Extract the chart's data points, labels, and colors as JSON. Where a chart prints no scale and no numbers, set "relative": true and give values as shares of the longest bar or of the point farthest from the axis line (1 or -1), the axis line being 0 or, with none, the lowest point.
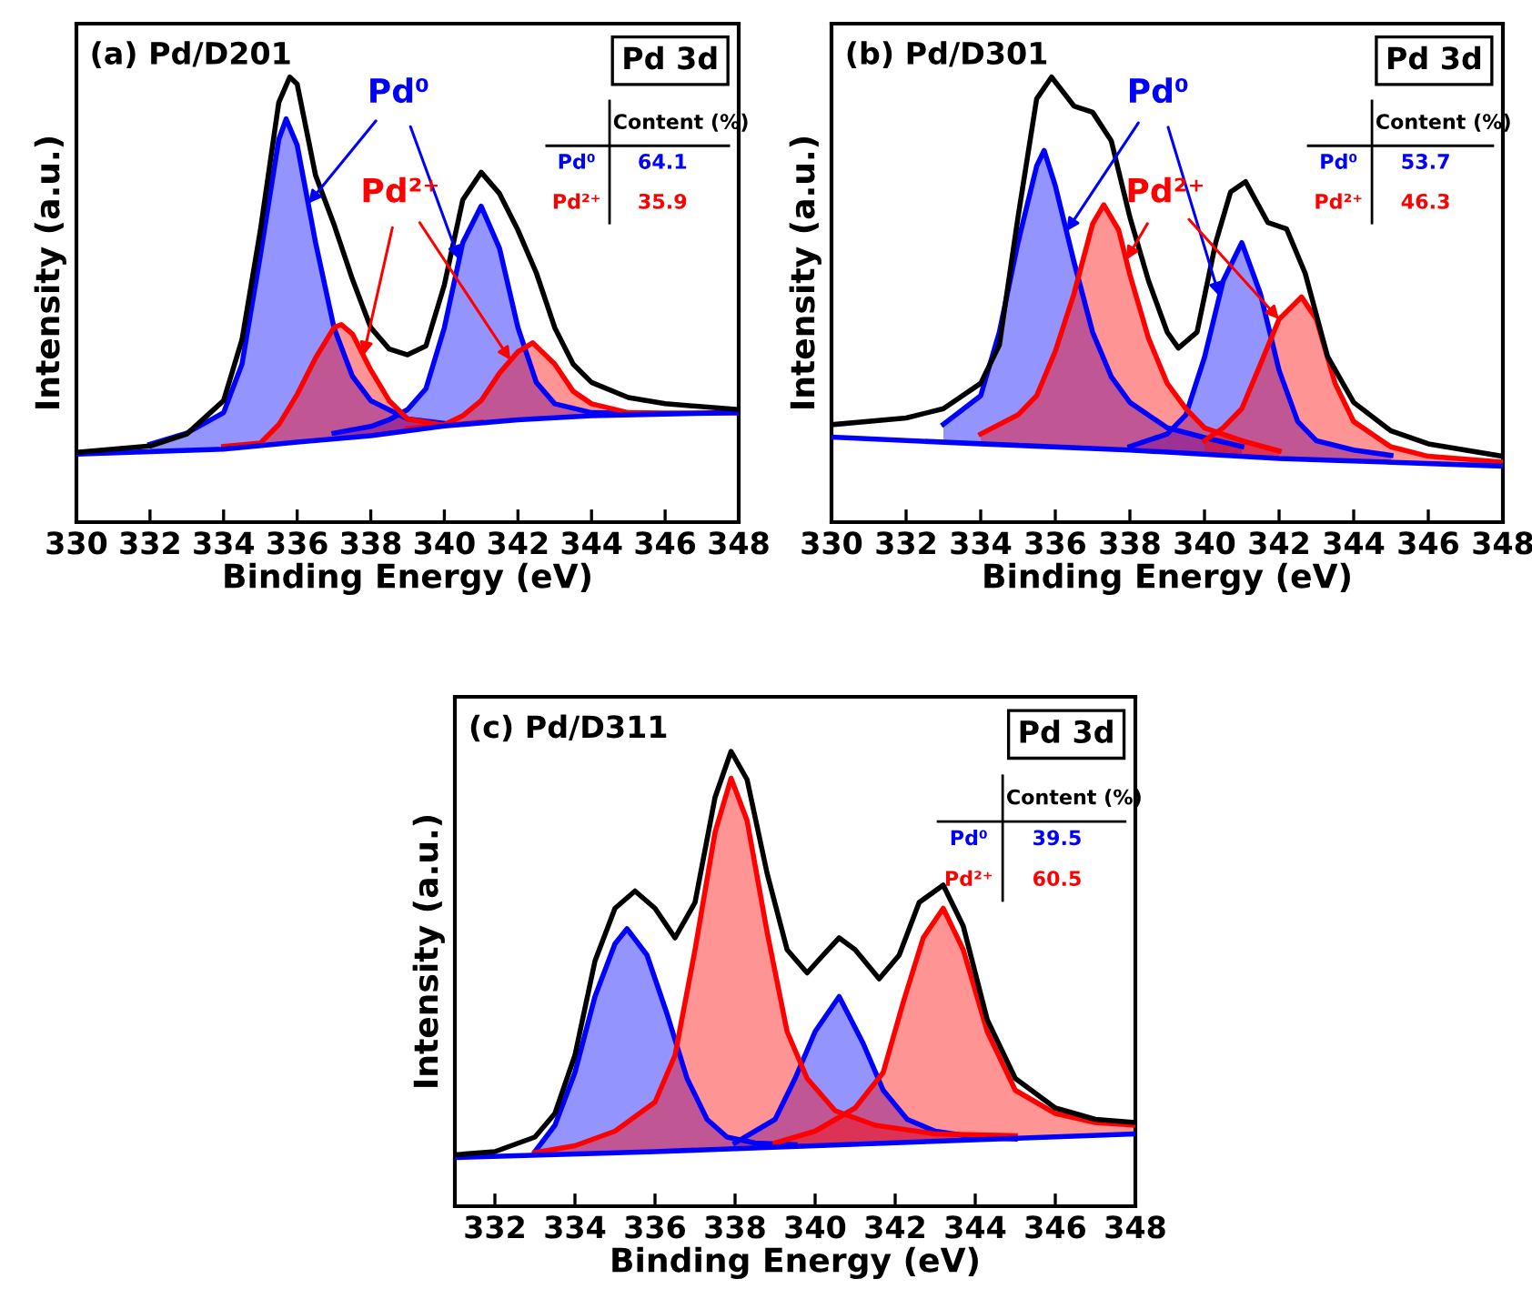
{
  "chart_data": [
    {
      "type": "line",
      "title": "(a) Pd/D201",
      "xlabel": "Binding Energy (eV)",
      "ylabel": "Intensity (a.u.)",
      "relative": true,
      "xlim": [
        330,
        348
      ],
      "xticks": [
        330,
        332,
        334,
        336,
        338,
        340,
        342,
        344,
        346,
        348
      ],
      "series": [
        {
          "type": "area",
          "color": "#0000ff",
          "x": [
            332,
            333,
            334,
            334.5,
            335,
            335.5,
            335.7,
            336,
            336.5,
            337,
            337.5,
            338,
            339,
            340
          ],
          "values": [
            0.175,
            0.2,
            0.246,
            0.355,
            0.6,
            0.86,
            0.906,
            0.847,
            0.628,
            0.437,
            0.328,
            0.273,
            0.232,
            0.222
          ]
        },
        {
          "type": "area",
          "color": "#0000ff",
          "x": [
            337,
            338,
            338.5,
            339,
            339.5,
            340,
            340.5,
            341,
            341.5,
            342,
            342.5,
            343,
            344,
            345
          ],
          "values": [
            0.2,
            0.215,
            0.23,
            0.253,
            0.3,
            0.437,
            0.628,
            0.71,
            0.615,
            0.437,
            0.314,
            0.266,
            0.246,
            0.245
          ]
        },
        {
          "type": "area",
          "color": "#ff0000",
          "x": [
            334,
            335,
            335.5,
            336,
            336.5,
            337,
            337.2,
            337.5,
            338,
            338.5,
            339,
            340,
            341
          ],
          "values": [
            0.17,
            0.178,
            0.219,
            0.287,
            0.369,
            0.437,
            0.444,
            0.423,
            0.342,
            0.273,
            0.232,
            0.217,
            0.225
          ]
        },
        {
          "type": "area",
          "color": "#ff0000",
          "x": [
            339,
            340,
            340.5,
            341,
            341.5,
            342,
            342.4,
            343,
            343.5,
            344,
            345,
            346,
            348
          ],
          "values": [
            0.21,
            0.219,
            0.239,
            0.273,
            0.335,
            0.383,
            0.403,
            0.355,
            0.294,
            0.266,
            0.246,
            0.245,
            0.246
          ]
        },
        {
          "type": "line",
          "color": "#0000ff",
          "x": [
            330,
            334,
            336,
            338,
            340,
            342,
            344,
            346,
            348
          ],
          "values": [
            0.153,
            0.164,
            0.18,
            0.194,
            0.216,
            0.23,
            0.239,
            0.243,
            0.246
          ]
        },
        {
          "type": "line",
          "color": "#000000",
          "x": [
            330,
            332,
            333,
            334,
            334.5,
            335,
            335.5,
            335.8,
            336,
            336.5,
            337,
            337.5,
            338,
            338.5,
            339,
            339.5,
            340,
            340.5,
            341,
            341.5,
            342,
            342.5,
            343,
            343.5,
            344,
            345,
            346,
            348
          ],
          "values": [
            0.157,
            0.171,
            0.198,
            0.273,
            0.41,
            0.656,
            0.943,
            1,
            0.984,
            0.779,
            0.669,
            0.546,
            0.437,
            0.389,
            0.376,
            0.396,
            0.533,
            0.724,
            0.786,
            0.738,
            0.656,
            0.56,
            0.437,
            0.355,
            0.314,
            0.28,
            0.266,
            0.253
          ]
        }
      ],
      "annotations": [
        "Pd 3d",
        "Content (%)",
        "Pd⁰",
        "64.1",
        "Pd²⁺",
        "35.9",
        "Pd⁰",
        "Pd²⁺"
      ]
    },
    {
      "type": "line",
      "title": "(b) Pd/D301",
      "xlabel": "Binding Energy (eV)",
      "ylabel": "Intensity (a.u.)",
      "relative": true,
      "xlim": [
        330,
        348
      ],
      "xticks": [
        330,
        332,
        334,
        336,
        338,
        340,
        342,
        344,
        346,
        348
      ],
      "series": [
        {
          "type": "area",
          "color": "#0000ff",
          "x": [
            333,
            334,
            334.5,
            335,
            335.5,
            335.7,
            336,
            336.5,
            337,
            337.5,
            338,
            339,
            340,
            341
          ],
          "values": [
            0.22,
            0.284,
            0.427,
            0.628,
            0.8,
            0.835,
            0.756,
            0.585,
            0.427,
            0.327,
            0.269,
            0.212,
            0.19,
            0.17
          ]
        },
        {
          "type": "area",
          "color": "#0000ff",
          "x": [
            338,
            339,
            339.5,
            340,
            340.5,
            341,
            341.5,
            342,
            342.5,
            343,
            344,
            345
          ],
          "values": [
            0.17,
            0.198,
            0.241,
            0.37,
            0.542,
            0.628,
            0.513,
            0.341,
            0.226,
            0.183,
            0.162,
            0.15
          ]
        },
        {
          "type": "area",
          "color": "#ff0000",
          "x": [
            334,
            335,
            335.5,
            336,
            336.5,
            337,
            337.3,
            337.7,
            338,
            338.5,
            339,
            339.5,
            340,
            341,
            342
          ],
          "values": [
            0.198,
            0.241,
            0.284,
            0.384,
            0.513,
            0.67,
            0.713,
            0.656,
            0.556,
            0.413,
            0.312,
            0.255,
            0.212,
            0.183,
            0.16
          ]
        },
        {
          "type": "area",
          "color": "#ff0000",
          "x": [
            340,
            340.5,
            341,
            341.5,
            342,
            342.6,
            343,
            343.5,
            344,
            345,
            346,
            348
          ],
          "values": [
            0.183,
            0.212,
            0.255,
            0.355,
            0.456,
            0.506,
            0.456,
            0.312,
            0.226,
            0.169,
            0.148,
            0.135
          ]
        },
        {
          "type": "line",
          "color": "#0000ff",
          "x": [
            330,
            334,
            338,
            342,
            348
          ],
          "values": [
            0.191,
            0.176,
            0.162,
            0.143,
            0.126
          ]
        },
        {
          "type": "line",
          "color": "#000000",
          "x": [
            330,
            332,
            333,
            334,
            334.5,
            335,
            335.5,
            335.9,
            336.5,
            337,
            337.5,
            338,
            338.5,
            339,
            339.3,
            339.8,
            340.3,
            340.7,
            341.1,
            341.7,
            342.2,
            342.7,
            343.3,
            344,
            345,
            346,
            348
          ],
          "values": [
            0.219,
            0.234,
            0.255,
            0.312,
            0.398,
            0.685,
            0.951,
            1,
            0.935,
            0.921,
            0.857,
            0.685,
            0.542,
            0.427,
            0.391,
            0.427,
            0.628,
            0.742,
            0.765,
            0.673,
            0.659,
            0.559,
            0.372,
            0.269,
            0.205,
            0.176,
            0.148
          ]
        }
      ],
      "annotations": [
        "Pd 3d",
        "Content (%)",
        "Pd⁰",
        "53.7",
        "Pd²⁺",
        "46.3",
        "Pd⁰",
        "Pd²⁺"
      ]
    },
    {
      "type": "line",
      "title": "(c) Pd/D311",
      "xlabel": "Binding Energy (eV)",
      "ylabel": "Intensity (a.u.)",
      "relative": true,
      "xlim": [
        331,
        348
      ],
      "xticks": [
        332,
        334,
        336,
        338,
        340,
        342,
        344,
        346,
        348
      ],
      "series": [
        {
          "type": "area",
          "color": "#0000ff",
          "x": [
            333,
            333.5,
            334,
            334.5,
            335,
            335.3,
            335.8,
            336.3,
            336.8,
            337.3,
            337.8,
            338.5,
            339.5
          ],
          "values": [
            0.12,
            0.178,
            0.294,
            0.461,
            0.577,
            0.61,
            0.552,
            0.423,
            0.281,
            0.191,
            0.152,
            0.139,
            0.135
          ]
        },
        {
          "type": "area",
          "color": "#0000ff",
          "x": [
            338,
            339,
            339.5,
            340,
            340.6,
            341.2,
            341.7,
            342.3,
            343,
            344,
            345
          ],
          "values": [
            0.139,
            0.191,
            0.281,
            0.384,
            0.461,
            0.358,
            0.255,
            0.191,
            0.165,
            0.152,
            0.148
          ]
        },
        {
          "type": "area",
          "color": "#ff0000",
          "x": [
            333,
            334,
            335,
            336,
            336.5,
            337,
            337.5,
            337.9,
            338.3,
            338.8,
            339.3,
            339.8,
            340.5,
            341.5,
            343,
            345
          ],
          "values": [
            0.118,
            0.133,
            0.165,
            0.229,
            0.332,
            0.564,
            0.822,
            0.941,
            0.848,
            0.603,
            0.384,
            0.281,
            0.21,
            0.178,
            0.159,
            0.155
          ]
        },
        {
          "type": "area",
          "color": "#ff0000",
          "x": [
            339,
            340,
            341,
            341.7,
            342.2,
            342.7,
            343.2,
            343.7,
            344.3,
            345,
            346,
            347,
            348
          ],
          "values": [
            0.139,
            0.165,
            0.216,
            0.294,
            0.448,
            0.59,
            0.655,
            0.564,
            0.384,
            0.255,
            0.204,
            0.184,
            0.178
          ]
        },
        {
          "type": "line",
          "color": "#0000ff",
          "x": [
            331,
            336,
            340,
            344,
            348
          ],
          "values": [
            0.107,
            0.12,
            0.133,
            0.146,
            0.159
          ]
        },
        {
          "type": "line",
          "color": "#000000",
          "x": [
            331,
            332,
            333,
            333.5,
            334,
            334.5,
            335,
            335.5,
            336,
            336.5,
            337,
            337.5,
            337.9,
            338.3,
            338.8,
            339.3,
            339.8,
            340.2,
            340.6,
            341,
            341.6,
            342.1,
            342.6,
            343.2,
            343.7,
            344.3,
            345,
            346,
            347,
            348
          ],
          "values": [
            0.113,
            0.12,
            0.152,
            0.204,
            0.332,
            0.539,
            0.655,
            0.693,
            0.655,
            0.59,
            0.668,
            0.899,
            1,
            0.938,
            0.732,
            0.564,
            0.513,
            0.552,
            0.59,
            0.564,
            0.5,
            0.552,
            0.668,
            0.706,
            0.616,
            0.41,
            0.281,
            0.216,
            0.191,
            0.184
          ]
        }
      ],
      "annotations": [
        "Pd 3d",
        "Content (%)",
        "Pd⁰",
        "39.5",
        "Pd²⁺",
        "60.5"
      ]
    }
  ]
}
